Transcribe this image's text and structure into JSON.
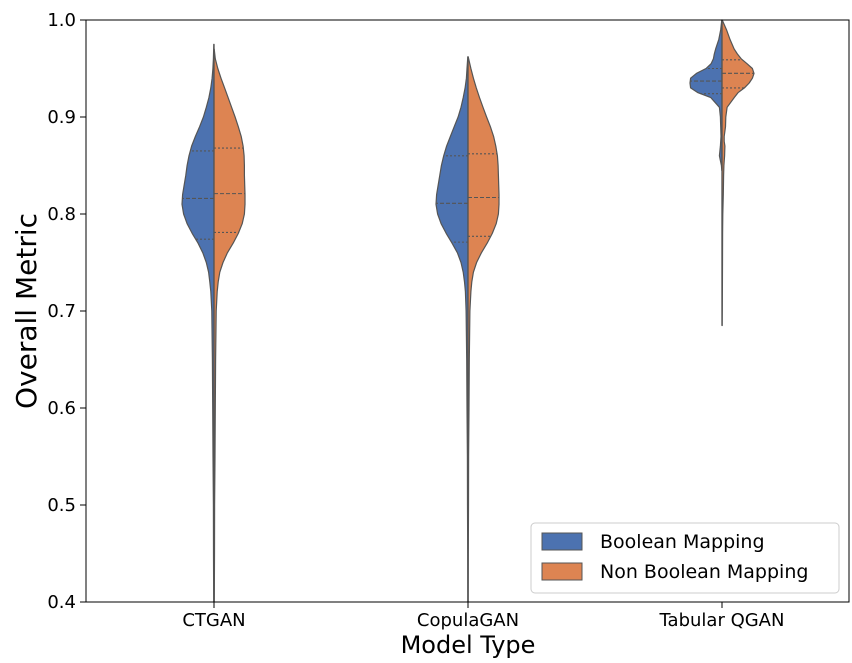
{
  "chart_data": {
    "type": "violin",
    "split": true,
    "xlabel": "Model Type",
    "ylabel": "Overall Metric",
    "ylim": [
      0.4,
      1.0
    ],
    "yticks": [
      "0.4",
      "0.5",
      "0.6",
      "0.7",
      "0.8",
      "0.9",
      "1.0"
    ],
    "categories": [
      "CTGAN",
      "CopulaGAN",
      "Tabular QGAN"
    ],
    "legend_position": "bottom-right",
    "series": [
      {
        "name": "Boolean Mapping",
        "color": "#4c72b0",
        "violins": [
          {
            "quartiles": [
              0.774,
              0.816,
              0.865
            ],
            "profile": [
              [
                0.4,
                0.01
              ],
              [
                0.45,
                0.015
              ],
              [
                0.5,
                0.02
              ],
              [
                0.55,
                0.03
              ],
              [
                0.6,
                0.04
              ],
              [
                0.65,
                0.05
              ],
              [
                0.7,
                0.07
              ],
              [
                0.72,
                0.1
              ],
              [
                0.73,
                0.13
              ],
              [
                0.74,
                0.17
              ],
              [
                0.75,
                0.24
              ],
              [
                0.76,
                0.35
              ],
              [
                0.77,
                0.5
              ],
              [
                0.78,
                0.68
              ],
              [
                0.79,
                0.84
              ],
              [
                0.8,
                0.95
              ],
              [
                0.81,
                1.0
              ],
              [
                0.82,
                0.98
              ],
              [
                0.83,
                0.93
              ],
              [
                0.84,
                0.88
              ],
              [
                0.85,
                0.84
              ],
              [
                0.86,
                0.78
              ],
              [
                0.87,
                0.7
              ],
              [
                0.88,
                0.58
              ],
              [
                0.89,
                0.45
              ],
              [
                0.9,
                0.33
              ],
              [
                0.91,
                0.24
              ],
              [
                0.92,
                0.16
              ],
              [
                0.93,
                0.1
              ],
              [
                0.94,
                0.06
              ],
              [
                0.95,
                0.035
              ],
              [
                0.96,
                0.02
              ],
              [
                0.975,
                0.005
              ]
            ]
          },
          {
            "quartiles": [
              0.771,
              0.811,
              0.86
            ],
            "profile": [
              [
                0.4,
                0.005
              ],
              [
                0.45,
                0.01
              ],
              [
                0.5,
                0.015
              ],
              [
                0.55,
                0.02
              ],
              [
                0.6,
                0.03
              ],
              [
                0.65,
                0.04
              ],
              [
                0.7,
                0.06
              ],
              [
                0.72,
                0.08
              ],
              [
                0.73,
                0.11
              ],
              [
                0.74,
                0.15
              ],
              [
                0.75,
                0.22
              ],
              [
                0.76,
                0.33
              ],
              [
                0.77,
                0.5
              ],
              [
                0.78,
                0.68
              ],
              [
                0.79,
                0.84
              ],
              [
                0.8,
                0.95
              ],
              [
                0.81,
                1.0
              ],
              [
                0.82,
                0.98
              ],
              [
                0.83,
                0.93
              ],
              [
                0.84,
                0.88
              ],
              [
                0.85,
                0.83
              ],
              [
                0.86,
                0.76
              ],
              [
                0.87,
                0.67
              ],
              [
                0.88,
                0.55
              ],
              [
                0.89,
                0.43
              ],
              [
                0.9,
                0.31
              ],
              [
                0.91,
                0.22
              ],
              [
                0.92,
                0.15
              ],
              [
                0.93,
                0.09
              ],
              [
                0.94,
                0.05
              ],
              [
                0.95,
                0.03
              ],
              [
                0.962,
                0.005
              ]
            ]
          },
          {
            "quartiles": [
              0.924,
              0.937,
              0.95
            ],
            "profile": [
              [
                0.845,
                0.005
              ],
              [
                0.85,
                0.02
              ],
              [
                0.86,
                0.08
              ],
              [
                0.87,
                0.05
              ],
              [
                0.88,
                0.03
              ],
              [
                0.89,
                0.04
              ],
              [
                0.9,
                0.05
              ],
              [
                0.91,
                0.08
              ],
              [
                0.92,
                0.35
              ],
              [
                0.925,
                0.75
              ],
              [
                0.93,
                0.98
              ],
              [
                0.935,
                1.0
              ],
              [
                0.94,
                0.98
              ],
              [
                0.945,
                0.8
              ],
              [
                0.95,
                0.5
              ],
              [
                0.955,
                0.34
              ],
              [
                0.96,
                0.27
              ],
              [
                0.965,
                0.24
              ],
              [
                0.97,
                0.2
              ],
              [
                0.98,
                0.1
              ],
              [
                0.99,
                0.04
              ],
              [
                1.0,
                0.005
              ]
            ]
          }
        ]
      },
      {
        "name": "Non Boolean Mapping",
        "color": "#dd8452",
        "violins": [
          {
            "quartiles": [
              0.781,
              0.821,
              0.868
            ],
            "profile": [
              [
                0.4,
                0.01
              ],
              [
                0.45,
                0.015
              ],
              [
                0.5,
                0.02
              ],
              [
                0.55,
                0.03
              ],
              [
                0.6,
                0.04
              ],
              [
                0.65,
                0.05
              ],
              [
                0.7,
                0.07
              ],
              [
                0.72,
                0.1
              ],
              [
                0.73,
                0.13
              ],
              [
                0.74,
                0.18
              ],
              [
                0.75,
                0.28
              ],
              [
                0.76,
                0.42
              ],
              [
                0.77,
                0.6
              ],
              [
                0.78,
                0.76
              ],
              [
                0.79,
                0.88
              ],
              [
                0.8,
                0.95
              ],
              [
                0.81,
                0.97
              ],
              [
                0.82,
                0.97
              ],
              [
                0.83,
                0.96
              ],
              [
                0.84,
                0.95
              ],
              [
                0.85,
                0.95
              ],
              [
                0.86,
                0.94
              ],
              [
                0.87,
                0.91
              ],
              [
                0.88,
                0.85
              ],
              [
                0.89,
                0.76
              ],
              [
                0.9,
                0.66
              ],
              [
                0.91,
                0.55
              ],
              [
                0.92,
                0.44
              ],
              [
                0.93,
                0.33
              ],
              [
                0.94,
                0.22
              ],
              [
                0.95,
                0.12
              ],
              [
                0.96,
                0.04
              ],
              [
                0.97,
                0.005
              ]
            ]
          },
          {
            "quartiles": [
              0.777,
              0.817,
              0.862
            ],
            "profile": [
              [
                0.4,
                0.005
              ],
              [
                0.45,
                0.01
              ],
              [
                0.5,
                0.015
              ],
              [
                0.55,
                0.02
              ],
              [
                0.6,
                0.03
              ],
              [
                0.65,
                0.04
              ],
              [
                0.7,
                0.06
              ],
              [
                0.72,
                0.09
              ],
              [
                0.73,
                0.12
              ],
              [
                0.74,
                0.17
              ],
              [
                0.75,
                0.27
              ],
              [
                0.76,
                0.42
              ],
              [
                0.77,
                0.6
              ],
              [
                0.78,
                0.76
              ],
              [
                0.79,
                0.88
              ],
              [
                0.8,
                0.95
              ],
              [
                0.81,
                0.97
              ],
              [
                0.82,
                0.97
              ],
              [
                0.83,
                0.96
              ],
              [
                0.84,
                0.95
              ],
              [
                0.85,
                0.94
              ],
              [
                0.86,
                0.92
              ],
              [
                0.87,
                0.87
              ],
              [
                0.88,
                0.8
              ],
              [
                0.89,
                0.7
              ],
              [
                0.9,
                0.58
              ],
              [
                0.91,
                0.47
              ],
              [
                0.92,
                0.36
              ],
              [
                0.93,
                0.26
              ],
              [
                0.94,
                0.17
              ],
              [
                0.95,
                0.09
              ],
              [
                0.962,
                0.005
              ]
            ]
          },
          {
            "quartiles": [
              0.93,
              0.945,
              0.959
            ],
            "profile": [
              [
                0.685,
                0.005
              ],
              [
                0.7,
                0.01
              ],
              [
                0.75,
                0.015
              ],
              [
                0.78,
                0.02
              ],
              [
                0.8,
                0.025
              ],
              [
                0.82,
                0.04
              ],
              [
                0.84,
                0.05
              ],
              [
                0.85,
                0.06
              ],
              [
                0.86,
                0.08
              ],
              [
                0.87,
                0.09
              ],
              [
                0.875,
                0.07
              ],
              [
                0.88,
                0.07
              ],
              [
                0.89,
                0.11
              ],
              [
                0.9,
                0.12
              ],
              [
                0.91,
                0.16
              ],
              [
                0.92,
                0.38
              ],
              [
                0.925,
                0.5
              ],
              [
                0.93,
                0.7
              ],
              [
                0.935,
                0.85
              ],
              [
                0.94,
                0.95
              ],
              [
                0.945,
                1.0
              ],
              [
                0.95,
                0.95
              ],
              [
                0.955,
                0.78
              ],
              [
                0.96,
                0.6
              ],
              [
                0.965,
                0.48
              ],
              [
                0.97,
                0.38
              ],
              [
                0.98,
                0.25
              ],
              [
                0.99,
                0.14
              ],
              [
                1.0,
                0.005
              ]
            ]
          }
        ]
      }
    ]
  }
}
